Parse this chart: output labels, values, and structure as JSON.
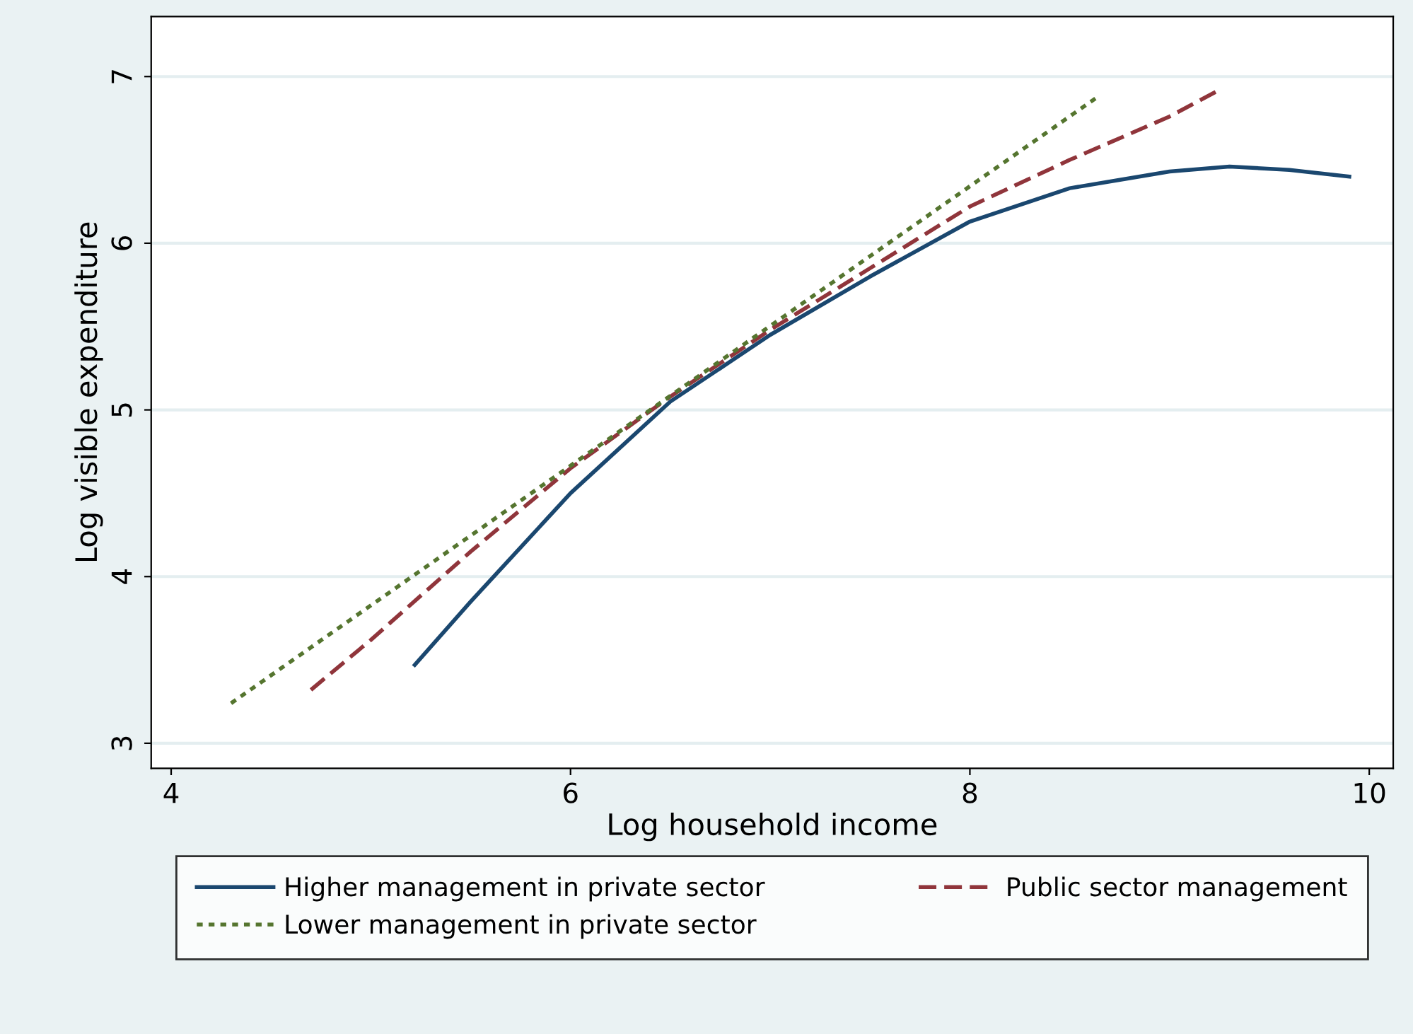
{
  "chart_data": {
    "type": "line",
    "xlabel": "Log household income",
    "ylabel": "Log visible expenditure",
    "xlim": [
      3.9,
      10.12
    ],
    "ylim": [
      2.85,
      7.36
    ],
    "xticks": [
      4,
      6,
      8,
      10
    ],
    "yticks": [
      3,
      4,
      5,
      6,
      7
    ],
    "grid": "y",
    "legend": "bottom",
    "series": [
      {
        "name": "Higher management in private sector",
        "color": "#1a476f",
        "line_style": "solid",
        "x": [
          5.22,
          5.5,
          6,
          6.5,
          7,
          7.5,
          8,
          8.5,
          9,
          9.3,
          9.6,
          9.9
        ],
        "values": [
          3.47,
          3.85,
          4.5,
          5.05,
          5.45,
          5.8,
          6.13,
          6.33,
          6.43,
          6.46,
          6.44,
          6.4
        ]
      },
      {
        "name": "Public sector management",
        "color": "#90353b",
        "line_style": "dashed",
        "x": [
          4.7,
          5,
          5.5,
          6,
          6.5,
          7,
          7.5,
          8,
          8.5,
          9,
          9.25
        ],
        "values": [
          3.32,
          3.62,
          4.15,
          4.65,
          5.08,
          5.48,
          5.85,
          6.22,
          6.5,
          6.76,
          6.92
        ]
      },
      {
        "name": "Lower management in private sector",
        "color": "#55752f",
        "line_style": "dotted",
        "x": [
          4.3,
          8.63
        ],
        "values": [
          3.24,
          6.87
        ]
      }
    ]
  }
}
